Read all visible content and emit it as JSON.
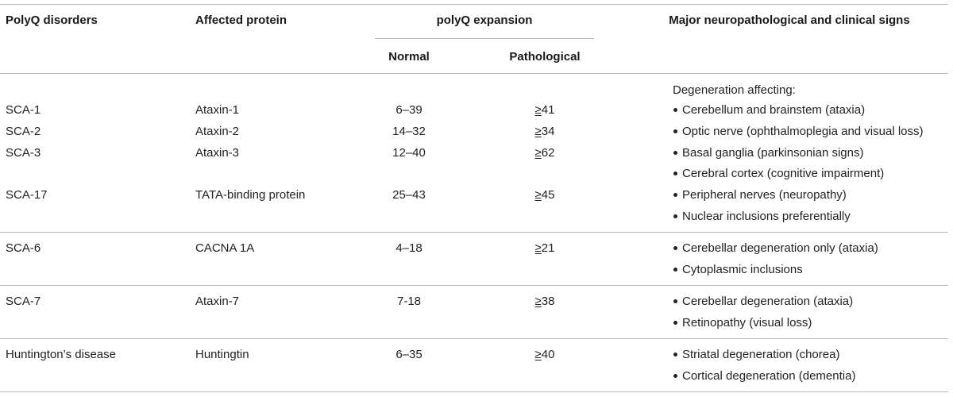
{
  "header": {
    "col1": "PolyQ disorders",
    "col2": "Affected protein",
    "group": "polyQ expansion",
    "normal": "Normal",
    "pathological": "Pathological",
    "col5": "Major neuropathological and clinical signs"
  },
  "group1": {
    "intro": "Degeneration affecting:",
    "rows": [
      {
        "disorder": "SCA-1",
        "protein": "Ataxin-1",
        "normal": "6–39",
        "path_ge": "≥",
        "path_val": "41"
      },
      {
        "disorder": "SCA-2",
        "protein": "Ataxin-2",
        "normal": "14–32",
        "path_ge": "≥",
        "path_val": "34"
      },
      {
        "disorder": "SCA-3",
        "protein": "Ataxin-3",
        "normal": "12–40",
        "path_ge": "≥",
        "path_val": "62"
      },
      {
        "disorder": "SCA-17",
        "protein": "TATA-binding protein",
        "normal": "25–43",
        "path_ge": "≥",
        "path_val": "45"
      }
    ],
    "signs": [
      "Cerebellum and brainstem (ataxia)",
      "Optic nerve (ophthalmoplegia and visual loss)",
      "Basal ganglia (parkinsonian signs)",
      "Cerebral cortex (cognitive impairment)",
      "Peripheral nerves (neuropathy)",
      "Nuclear inclusions preferentially"
    ]
  },
  "group2": {
    "disorder": "SCA-6",
    "protein": "CACNA 1A",
    "normal": "4–18",
    "path_ge": "≥",
    "path_val": "21",
    "signs": [
      "Cerebellar degeneration only (ataxia)",
      "Cytoplasmic inclusions"
    ]
  },
  "group3": {
    "disorder": "SCA-7",
    "protein": "Ataxin-7",
    "normal": "7-18",
    "path_ge": "≥",
    "path_val": "38",
    "signs": [
      "Cerebellar degeneration (ataxia)",
      "Retinopathy (visual loss)"
    ]
  },
  "group4": {
    "disorder": "Huntington’s disease",
    "protein": "Huntingtin",
    "normal": "6–35",
    "path_ge": "≥",
    "path_val": "40",
    "signs": [
      "Striatal degeneration (chorea)",
      "Cortical degeneration (dementia)"
    ]
  }
}
